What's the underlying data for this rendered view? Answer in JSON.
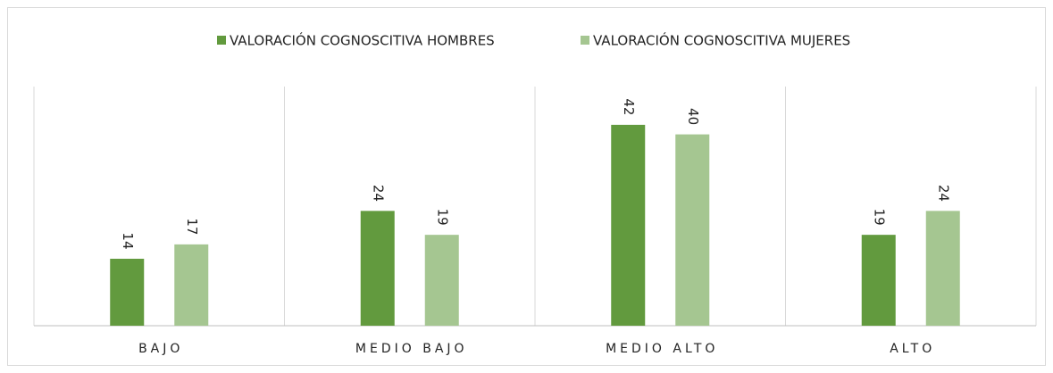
{
  "chart_data": {
    "type": "bar",
    "categories": [
      "BAJO",
      "MEDIO BAJO",
      "MEDIO ALTO",
      "ALTO"
    ],
    "series": [
      {
        "name": "VALORACIÓN COGNOSCITIVA  HOMBRES",
        "color": "#629a3e",
        "values": [
          14,
          24,
          42,
          19
        ]
      },
      {
        "name": "VALORACIÓN COGNOSCITIVA  MUJERES",
        "color": "#a5c691",
        "values": [
          17,
          19,
          40,
          24
        ]
      }
    ],
    "ylim": [
      0,
      50
    ],
    "legend": "top"
  }
}
